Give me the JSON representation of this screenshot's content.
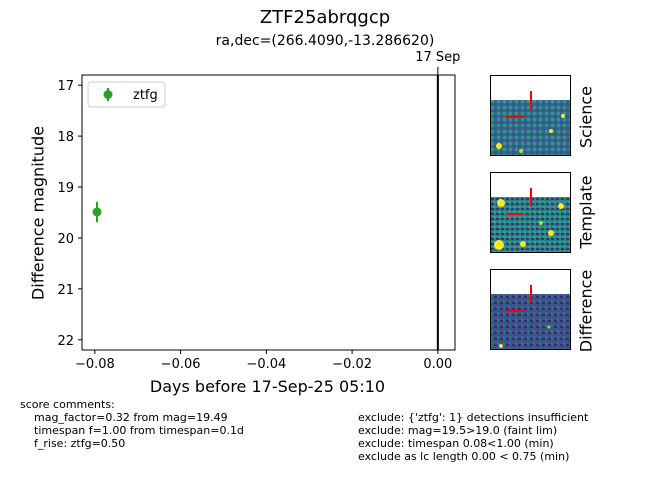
{
  "header": {
    "title": "ZTF25abrqgcp",
    "subtitle": "ra,dec=(266.4090,-13.286620)"
  },
  "chart_data": {
    "type": "scatter",
    "xlabel": "Days before 17-Sep-25 05:10",
    "ylabel": "Difference magnitude",
    "xlim": [
      -0.083,
      0.004
    ],
    "ylim": [
      22.2,
      16.8
    ],
    "y_inverted": true,
    "x_ticks": [
      "−0.08",
      "−0.06",
      "−0.04",
      "−0.02",
      "0.00"
    ],
    "x_tick_values": [
      -0.08,
      -0.06,
      -0.04,
      -0.02,
      0.0
    ],
    "y_ticks": [
      "17",
      "18",
      "19",
      "20",
      "21",
      "22"
    ],
    "y_tick_values": [
      17,
      18,
      19,
      20,
      21,
      22
    ],
    "series": [
      {
        "name": "ztfg",
        "color": "#2ca02c",
        "points": [
          {
            "x": -0.0795,
            "y": 19.49,
            "yerr": 0.2
          }
        ]
      }
    ],
    "vline": {
      "x": 0.0,
      "label": "17 Sep",
      "color": "#000000"
    },
    "legend_position": "top-left",
    "grid": false
  },
  "cutouts": {
    "science_label": "Science",
    "template_label": "Template",
    "difference_label": "Difference",
    "marker_color": "#ff0000"
  },
  "score_comments": {
    "heading": "score comments:",
    "lines": [
      "mag_factor=0.32 from mag=19.49",
      "timespan f=1.00 from timespan=0.1d",
      "f_rise: ztfg=0.50"
    ]
  },
  "exclusions": {
    "lines": [
      "exclude: {'ztfg': 1} detections insufficient",
      "exclude: mag=19.5>19.0 (faint lim)",
      "exclude: timespan 0.08<1.00 (min)",
      "exclude as lc length 0.00 < 0.75 (min)"
    ]
  }
}
